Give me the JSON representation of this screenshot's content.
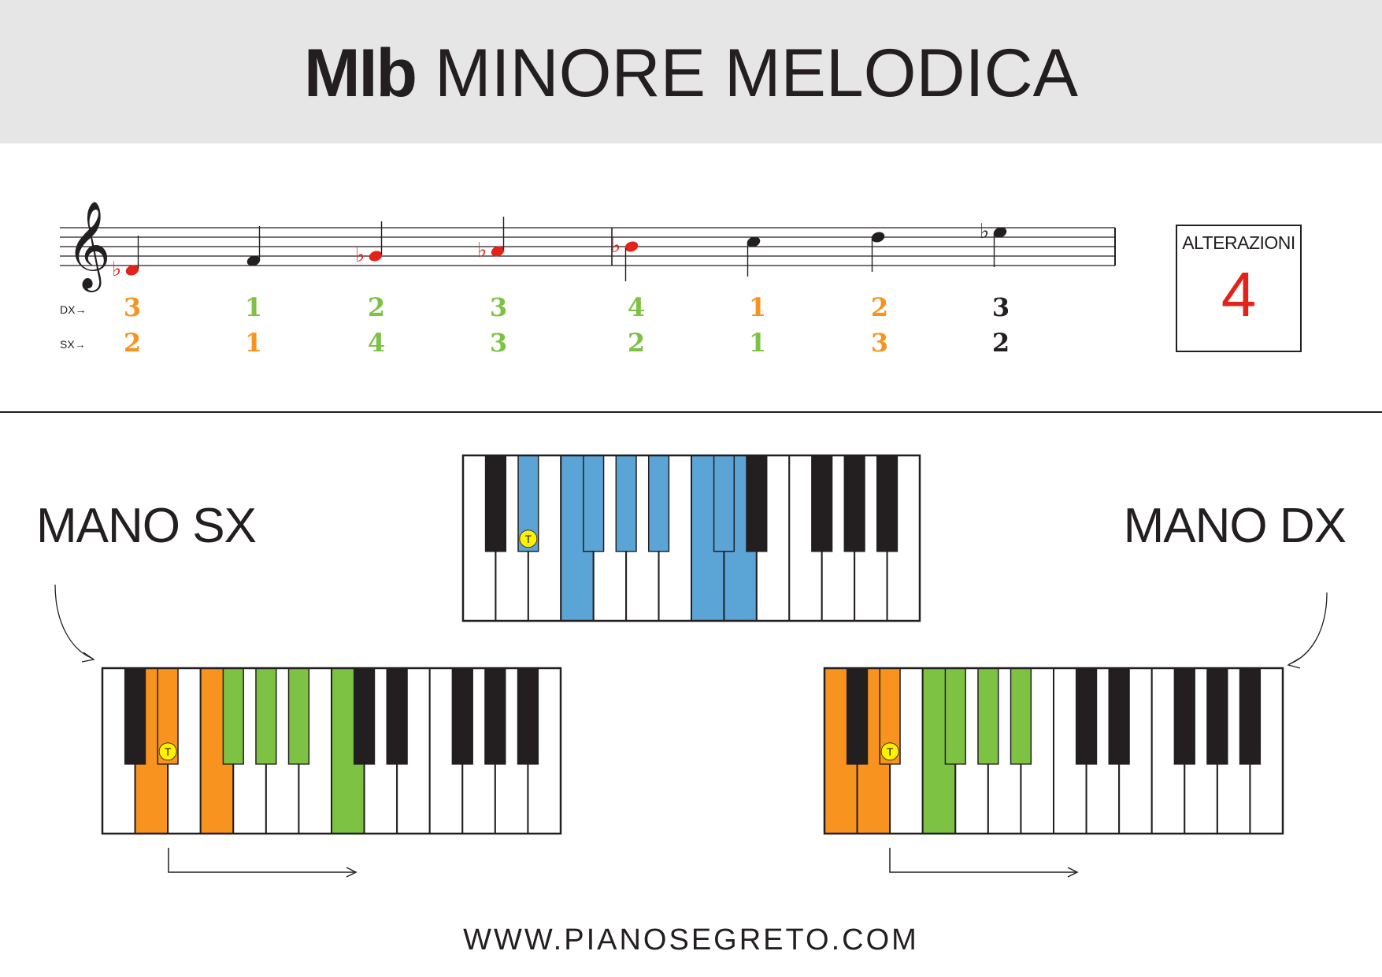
{
  "title": {
    "bold": "MIb",
    "rest": "MINORE MELODICA"
  },
  "fingering": {
    "dx_label": "DX→",
    "sx_label": "SX→",
    "dx": [
      "3",
      "1",
      "2",
      "3",
      "4",
      "1",
      "2",
      "3"
    ],
    "sx": [
      "2",
      "1",
      "4",
      "3",
      "2",
      "1",
      "3",
      "2"
    ],
    "dx_colors": [
      "#f7931e",
      "#7dc242",
      "#7dc242",
      "#7dc242",
      "#7dc242",
      "#f7931e",
      "#f7931e",
      "#231f20"
    ],
    "sx_colors": [
      "#f7931e",
      "#f7931e",
      "#7dc242",
      "#7dc242",
      "#7dc242",
      "#7dc242",
      "#f7931e",
      "#231f20"
    ]
  },
  "notes": {
    "colors": [
      "#e2231a",
      "#231f20",
      "#e2231a",
      "#e2231a",
      "#e2231a",
      "#231f20",
      "#231f20",
      "#231f20"
    ],
    "flat_glyph": "♭",
    "clef_glyph": "𝄞"
  },
  "alterazioni": {
    "label": "ALTERAZIONI",
    "value": "4"
  },
  "hands": {
    "left": "MANO SX",
    "right": "MANO DX"
  },
  "keyboards": {
    "tonic_marker": "T",
    "colors": {
      "blue": "#5ba4d6",
      "orange": "#f7931e",
      "green": "#7dc242",
      "tonic": "#fff200"
    },
    "top": {
      "white_highlight": [
        3,
        7,
        8
      ],
      "black_highlight": [
        1,
        2,
        3,
        4,
        5,
        6
      ]
    },
    "left": {
      "white_highlight_orange": [
        1,
        3
      ],
      "white_highlight_green": [
        7
      ],
      "black_highlight_orange": [
        1
      ],
      "black_highlight_green": [
        2,
        3,
        4
      ]
    },
    "right": {
      "white_highlight_orange": [
        0,
        1
      ],
      "white_highlight_green": [
        3
      ],
      "black_highlight_orange": [
        1
      ],
      "black_highlight_green": [
        2,
        3,
        4
      ]
    }
  },
  "footer": "WWW.PIANOSEGRETO.COM"
}
